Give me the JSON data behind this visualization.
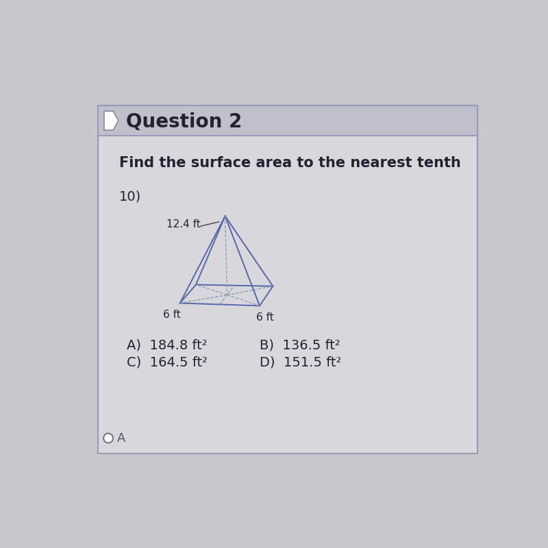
{
  "title": "Question 2",
  "question_text": "Find the surface area to the nearest tenth",
  "problem_number": "10)",
  "dimension_slant": "12.4 ft",
  "dimension_base1": "6 ft",
  "dimension_base2": "6 ft",
  "answer_A": "A)  184.8 ft²",
  "answer_B": "B)  136.5 ft²",
  "answer_C": "C)  164.5 ft²",
  "answer_D": "D)  151.5 ft²",
  "selected_answer": "A",
  "outer_bg": "#c8c8cc",
  "header_bg": "#c0c0cc",
  "content_bg": "#d8d8dc",
  "line_color": "#5566aa",
  "dashed_color": "#8899bb",
  "text_color": "#222233",
  "border_color": "#9999bb"
}
